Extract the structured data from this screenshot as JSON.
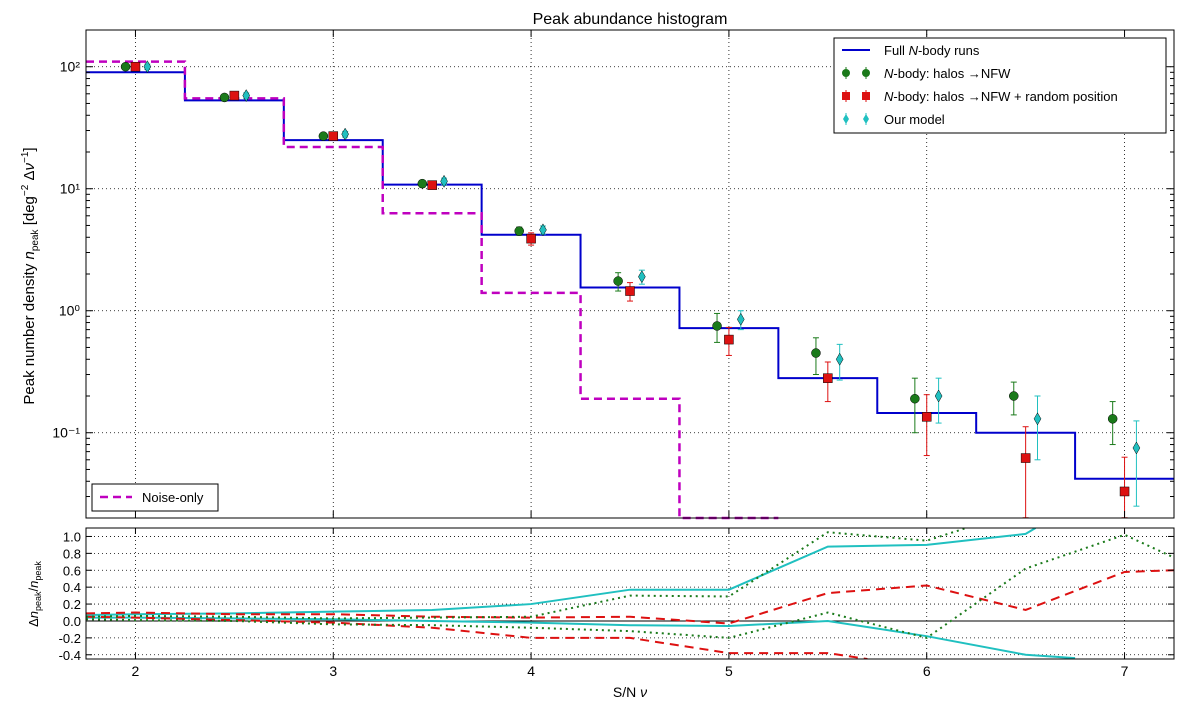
{
  "chart_data": [
    {
      "type": "step-histogram-with-errorbars",
      "title": "Peak abundance histogram",
      "ylabel": "Peak number density n_peak [deg^-2 Δν^-1]",
      "yscale": "log",
      "xlim": [
        1.75,
        7.25
      ],
      "ylim": [
        0.02,
        200
      ],
      "yticks": [
        {
          "v": 100,
          "label": "10²"
        },
        {
          "v": 10,
          "label": "10¹"
        },
        {
          "v": 1,
          "label": "10⁰"
        },
        {
          "v": 0.1,
          "label": "10⁻¹"
        }
      ],
      "grid": true,
      "legend_position": "top-right",
      "bin_edges": [
        1.75,
        2.25,
        2.75,
        3.25,
        3.75,
        4.25,
        4.75,
        5.25,
        5.75,
        6.25,
        6.75,
        7.25
      ],
      "steps": [
        {
          "name": "Full N-body runs",
          "color": "#0000cc",
          "dash": "",
          "values": [
            90,
            53,
            25,
            10.8,
            4.2,
            1.55,
            0.72,
            0.28,
            0.145,
            0.1,
            0.042
          ]
        },
        {
          "name": "Noise-only",
          "color": "#bf00bf",
          "dash": "8,5",
          "values": [
            110,
            55,
            22,
            6.3,
            1.4,
            0.19,
            0.005,
            null,
            null,
            null,
            null
          ]
        }
      ],
      "points": [
        {
          "name": "N-body: halos →NFW",
          "color": "#1a7a1a",
          "marker": "circle",
          "x": [
            1.95,
            2.45,
            2.95,
            3.45,
            3.94,
            4.44,
            4.94,
            5.44,
            5.94,
            6.44,
            6.94
          ],
          "y": [
            100,
            56,
            27,
            11,
            4.5,
            1.75,
            0.75,
            0.45,
            0.19,
            0.2,
            0.13
          ],
          "err": [
            5,
            3,
            1.5,
            0.7,
            0.35,
            0.3,
            0.2,
            0.15,
            0.09,
            0.06,
            0.05
          ]
        },
        {
          "name": "N-body: halos →NFW + random position",
          "color": "#dd1111",
          "marker": "square",
          "x": [
            2.0,
            2.5,
            3.0,
            3.5,
            4.0,
            4.5,
            5.0,
            5.5,
            6.0,
            6.5,
            7.0
          ],
          "y": [
            100,
            58,
            27,
            10.7,
            3.9,
            1.45,
            0.58,
            0.28,
            0.135,
            0.062,
            0.033
          ],
          "err": [
            5,
            3,
            1.5,
            0.7,
            0.45,
            0.25,
            0.15,
            0.1,
            0.07,
            0.05,
            0.03
          ]
        },
        {
          "name": "Our model",
          "color": "#20c0c0",
          "marker": "diamond",
          "x": [
            2.06,
            2.56,
            3.06,
            3.56,
            4.06,
            4.56,
            5.06,
            5.56,
            6.06,
            6.56,
            7.06
          ],
          "y": [
            100,
            58,
            28,
            11.5,
            4.6,
            1.9,
            0.85,
            0.4,
            0.2,
            0.13,
            0.075
          ],
          "err": [
            5,
            3,
            1.5,
            0.7,
            0.35,
            0.25,
            0.15,
            0.13,
            0.08,
            0.07,
            0.05
          ]
        }
      ]
    },
    {
      "type": "line",
      "xlabel": "S/N ν",
      "ylabel": "Δn_peak / n_peak",
      "xlim": [
        1.75,
        7.25
      ],
      "ylim": [
        -0.45,
        1.1
      ],
      "xticks": [
        2,
        3,
        4,
        5,
        6,
        7
      ],
      "yticks": [
        -0.4,
        -0.2,
        0.0,
        0.2,
        0.4,
        0.6,
        0.8,
        1.0
      ],
      "grid": true,
      "series": [
        {
          "color": "#20c0c0",
          "dash": "",
          "x": [
            1.75,
            2.0,
            2.5,
            3.0,
            3.5,
            4.0,
            4.5,
            5.0,
            5.5,
            6.0,
            6.5,
            6.55
          ],
          "y": [
            0.07,
            0.08,
            0.09,
            0.11,
            0.13,
            0.2,
            0.37,
            0.37,
            0.88,
            0.9,
            1.03,
            1.1
          ]
        },
        {
          "color": "#20c0c0",
          "dash": "",
          "x": [
            1.75,
            2.0,
            2.5,
            3.0,
            3.5,
            4.0,
            4.5,
            5.0,
            5.5,
            6.0,
            6.5,
            6.75
          ],
          "y": [
            0.04,
            0.04,
            0.03,
            0.02,
            0.0,
            -0.02,
            -0.05,
            -0.06,
            0.0,
            -0.18,
            -0.4,
            -0.44
          ]
        },
        {
          "color": "#dd1111",
          "dash": "9,6",
          "x": [
            1.75,
            2.0,
            2.5,
            3.0,
            3.5,
            4.0,
            4.5,
            5.0,
            5.5,
            6.0,
            6.5,
            7.0,
            7.25
          ],
          "y": [
            0.09,
            0.1,
            0.08,
            0.08,
            0.05,
            0.04,
            0.05,
            -0.03,
            0.33,
            0.42,
            0.13,
            0.58,
            0.6
          ]
        },
        {
          "color": "#dd1111",
          "dash": "9,6",
          "x": [
            1.75,
            2.0,
            2.5,
            3.0,
            3.5,
            4.0,
            4.5,
            5.0,
            5.5,
            5.7
          ],
          "y": [
            0.05,
            0.04,
            0.01,
            -0.02,
            -0.08,
            -0.2,
            -0.2,
            -0.38,
            -0.38,
            -0.45
          ]
        },
        {
          "color": "#1a7a1a",
          "dash": "2,4",
          "x": [
            1.75,
            2.0,
            2.5,
            3.0,
            3.5,
            4.0,
            4.5,
            5.0,
            5.5,
            6.0,
            6.2
          ],
          "y": [
            0.05,
            0.06,
            0.05,
            0.03,
            0.04,
            0.05,
            0.3,
            0.29,
            1.05,
            0.95,
            1.1
          ]
        },
        {
          "color": "#1a7a1a",
          "dash": "2,4",
          "x": [
            1.75,
            2.0,
            2.5,
            3.0,
            3.5,
            4.0,
            4.5,
            5.0,
            5.5,
            6.0,
            6.5,
            7.0,
            7.25
          ],
          "y": [
            0.02,
            0.01,
            0.0,
            -0.04,
            -0.05,
            -0.08,
            -0.12,
            -0.2,
            0.1,
            -0.2,
            0.62,
            1.02,
            0.75
          ]
        }
      ]
    }
  ]
}
